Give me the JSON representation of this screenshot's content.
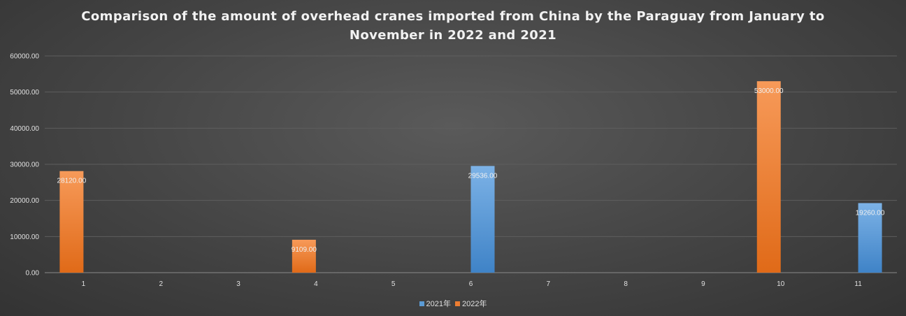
{
  "chart_data": {
    "type": "bar",
    "title_lines": [
      "Comparison of the amount of overhead cranes imported from China by the Paraguay from January to",
      "November in 2022 and 2021"
    ],
    "categories": [
      "1",
      "2",
      "3",
      "4",
      "5",
      "6",
      "7",
      "8",
      "9",
      "10",
      "11"
    ],
    "series": [
      {
        "name": "2021年",
        "color": "#5b9bd5",
        "values": [
          null,
          null,
          null,
          null,
          null,
          29536.0,
          null,
          null,
          null,
          null,
          19260.0
        ],
        "labels": [
          "",
          "",
          "",
          "",
          "",
          "29536.00",
          "",
          "",
          "",
          "",
          "19260.00"
        ]
      },
      {
        "name": "2022年",
        "color": "#ed7d31",
        "values": [
          28120.0,
          null,
          null,
          9109.0,
          null,
          null,
          null,
          null,
          null,
          53000.0,
          null
        ],
        "labels": [
          "28120.00",
          "",
          "",
          "9109.00",
          "",
          "",
          "",
          "",
          "",
          "53000.00",
          ""
        ]
      }
    ],
    "ylim": [
      0,
      60000
    ],
    "yticks": [
      "0.00",
      "10000.00",
      "20000.00",
      "30000.00",
      "40000.00",
      "50000.00",
      "60000.00"
    ],
    "ytick_values": [
      0,
      10000,
      20000,
      30000,
      40000,
      50000,
      60000
    ],
    "grid": true,
    "legend_position": "bottom"
  }
}
